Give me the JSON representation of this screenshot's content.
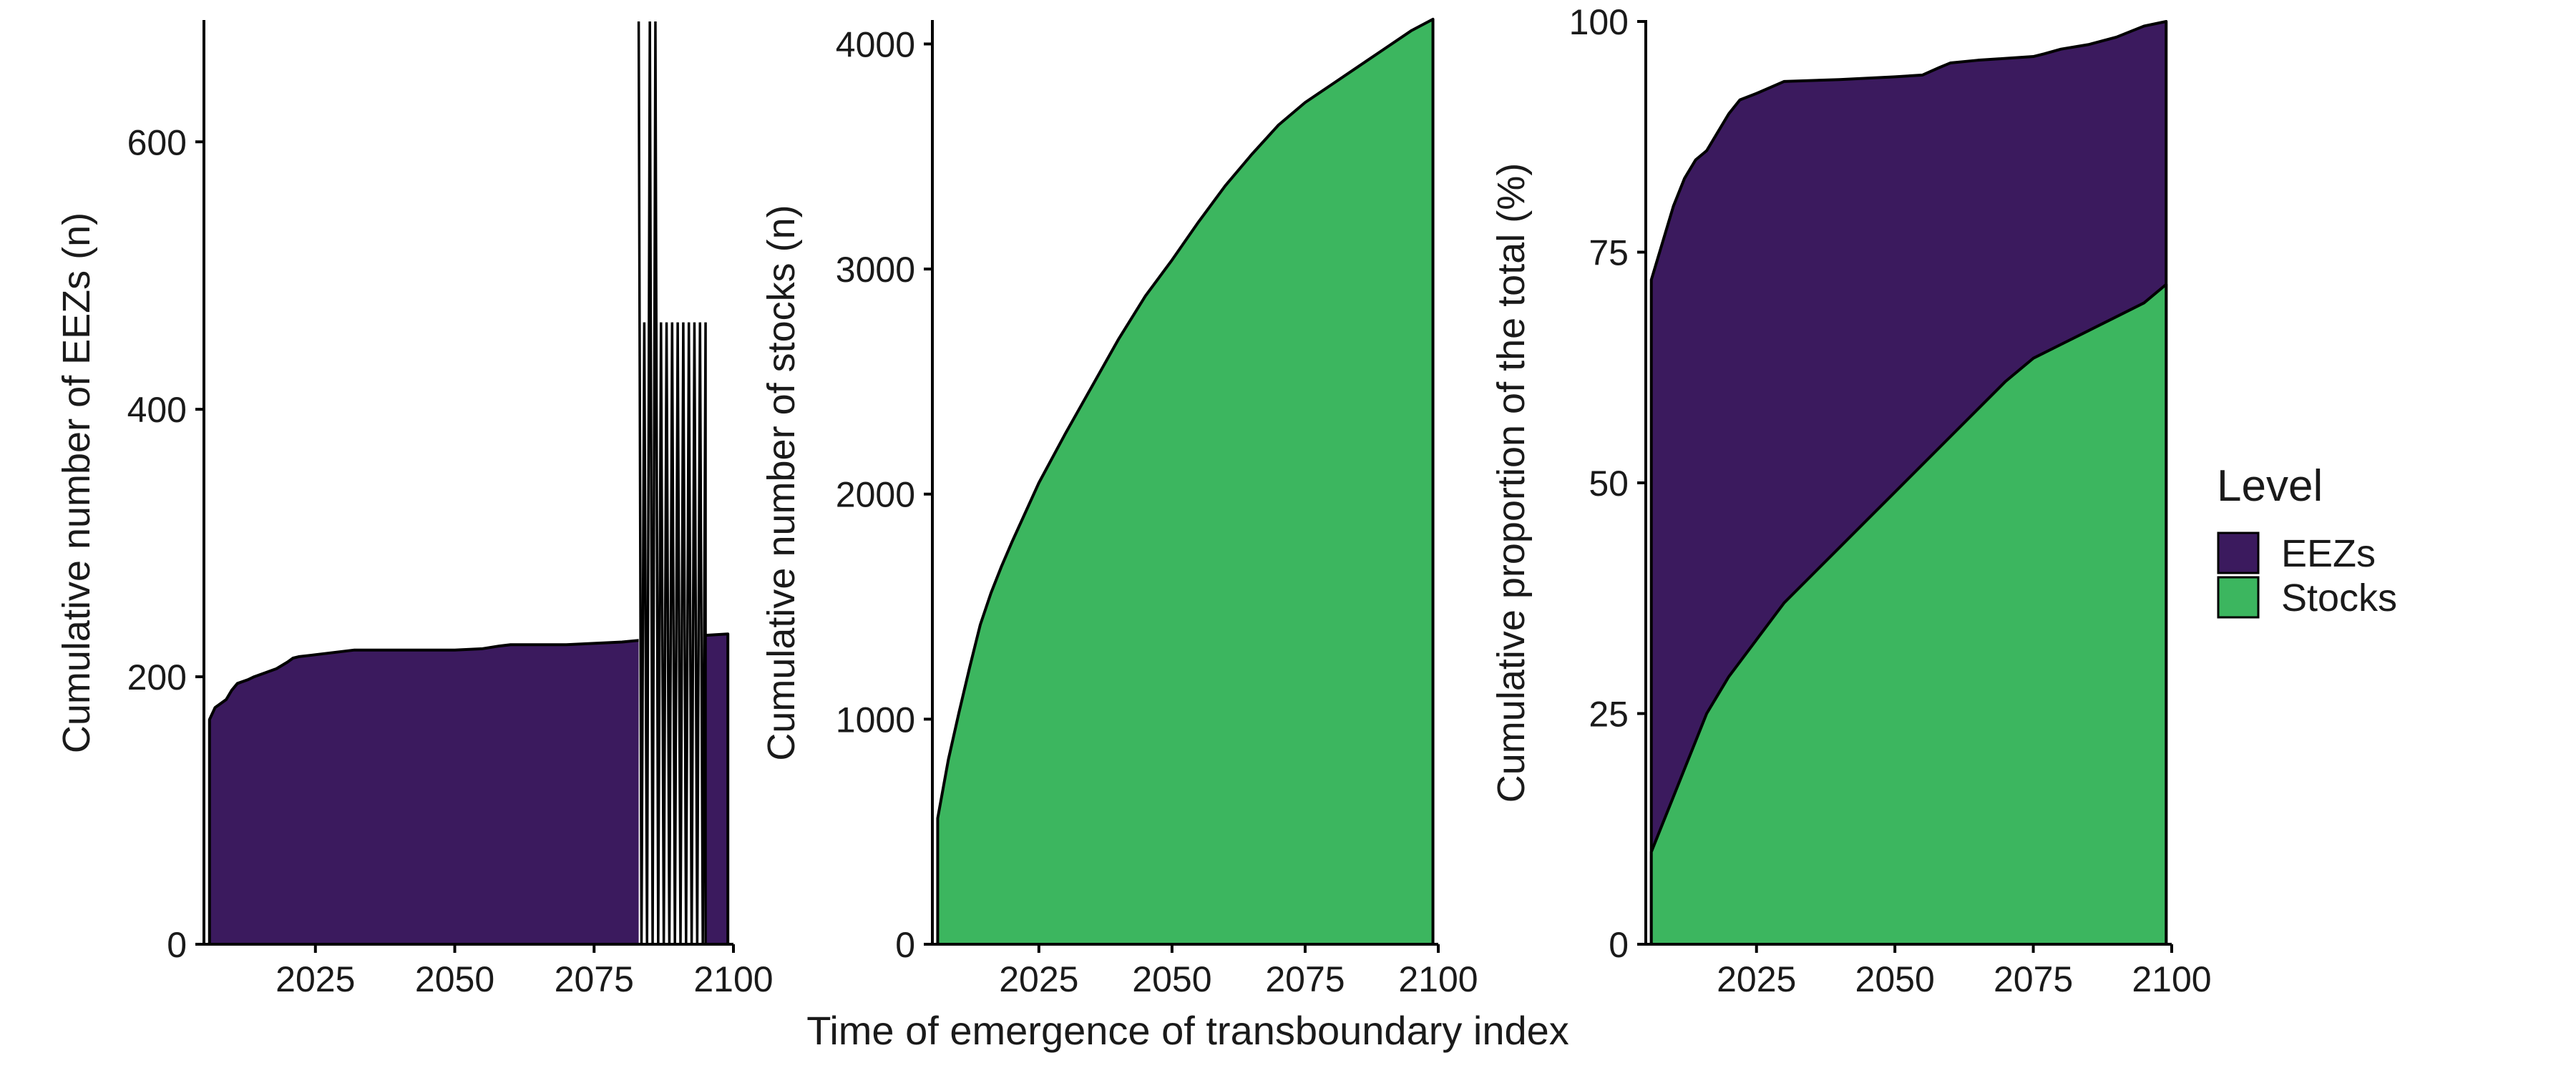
{
  "chart_data": [
    {
      "type": "area",
      "panel": "eezs",
      "ylabel": "Cumulative number of EEZs (n)",
      "xlim": [
        2005,
        2100
      ],
      "ylim": [
        0,
        690
      ],
      "xticks": [
        2025,
        2050,
        2075,
        2100
      ],
      "yticks": [
        0,
        200,
        400,
        600
      ],
      "series": [
        {
          "name": "EEZs",
          "color": "#3b1a5e",
          "x": [
            2006,
            2007,
            2009,
            2010,
            2011,
            2013,
            2014,
            2016,
            2018,
            2020,
            2021,
            2022,
            2024,
            2026,
            2028,
            2030,
            2032,
            2035,
            2040,
            2045,
            2050,
            2055,
            2058,
            2060,
            2065,
            2070,
            2075,
            2080,
            2085,
            2090,
            2095,
            2099
          ],
          "values": [
            168,
            177,
            183,
            190,
            195,
            198,
            200,
            203,
            206,
            211,
            214,
            215,
            216,
            217,
            218,
            219,
            220,
            220,
            220,
            220,
            220,
            221,
            223,
            224,
            224,
            224,
            225,
            226,
            228,
            230,
            231,
            232
          ]
        }
      ],
      "spikes": {
        "start": 2083,
        "end": 2095,
        "count": 12,
        "low": 0,
        "high": 465,
        "peak": 690
      }
    },
    {
      "type": "area",
      "panel": "stocks",
      "ylabel": "Cumulative number of stocks (n)",
      "xlim": [
        2005,
        2100
      ],
      "ylim": [
        0,
        4100
      ],
      "xticks": [
        2025,
        2050,
        2075,
        2100
      ],
      "yticks": [
        0,
        1000,
        2000,
        3000,
        4000
      ],
      "series": [
        {
          "name": "Stocks",
          "color": "#3cb65f",
          "x": [
            2006,
            2008,
            2010,
            2012,
            2014,
            2016,
            2018,
            2020,
            2025,
            2030,
            2035,
            2040,
            2045,
            2050,
            2055,
            2060,
            2065,
            2070,
            2075,
            2080,
            2085,
            2090,
            2095,
            2099
          ],
          "values": [
            560,
            820,
            1030,
            1230,
            1420,
            1560,
            1680,
            1790,
            2050,
            2270,
            2480,
            2690,
            2880,
            3040,
            3210,
            3370,
            3510,
            3640,
            3740,
            3820,
            3900,
            3980,
            4060,
            4110
          ]
        }
      ]
    },
    {
      "type": "area",
      "panel": "proportion",
      "ylabel": "Cumulative proportion of the total (%)",
      "xlim": [
        2005,
        2100
      ],
      "ylim": [
        0,
        100
      ],
      "xticks": [
        2025,
        2050,
        2075,
        2100
      ],
      "yticks": [
        0,
        25,
        50,
        75,
        100
      ],
      "stacked": true,
      "series": [
        {
          "name": "EEZs",
          "color": "#3b1a5e",
          "x": [
            2006,
            2008,
            2010,
            2012,
            2014,
            2016,
            2018,
            2020,
            2022,
            2025,
            2030,
            2040,
            2050,
            2055,
            2058,
            2060,
            2065,
            2070,
            2075,
            2077,
            2080,
            2085,
            2090,
            2095,
            2099
          ],
          "top": [
            72,
            76,
            80,
            83,
            85,
            86,
            88,
            90,
            91.5,
            92.2,
            93.5,
            93.7,
            94,
            94.2,
            95,
            95.5,
            95.8,
            96,
            96.2,
            96.5,
            97,
            97.5,
            98.3,
            99.5,
            100
          ]
        },
        {
          "name": "Stocks",
          "color": "#3cb65f",
          "x": [
            2006,
            2008,
            2010,
            2012,
            2014,
            2016,
            2018,
            2020,
            2025,
            2030,
            2035,
            2040,
            2045,
            2050,
            2055,
            2060,
            2065,
            2070,
            2075,
            2080,
            2085,
            2090,
            2095,
            2099
          ],
          "values": [
            10,
            13,
            16,
            19,
            22,
            25,
            27,
            29,
            33,
            37,
            40,
            43,
            46,
            49,
            52,
            55,
            58,
            61,
            63.5,
            65,
            66.5,
            68,
            69.5,
            71.5
          ]
        }
      ]
    }
  ],
  "xlabel": "Time of emergence of transboundary index",
  "legend": {
    "title": "Level",
    "placement": "right",
    "items": [
      {
        "label": "EEZs",
        "color": "#3b1a5e"
      },
      {
        "label": "Stocks",
        "color": "#3cb65f"
      }
    ]
  }
}
